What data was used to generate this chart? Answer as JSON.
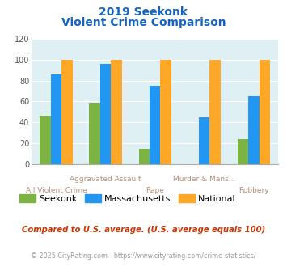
{
  "title_line1": "2019 Seekonk",
  "title_line2": "Violent Crime Comparison",
  "categories": [
    "All Violent Crime",
    "Aggravated Assault",
    "Rape",
    "Murder & Mans...",
    "Robbery"
  ],
  "seekonk": [
    46,
    59,
    15,
    0,
    24
  ],
  "massachusetts": [
    86,
    96,
    75,
    45,
    65
  ],
  "national": [
    100,
    100,
    100,
    100,
    100
  ],
  "seekonk_color": "#7CB342",
  "massachusetts_color": "#2196F3",
  "national_color": "#FFA726",
  "ylim": [
    0,
    120
  ],
  "yticks": [
    0,
    20,
    40,
    60,
    80,
    100,
    120
  ],
  "background_color": "#DFF0F5",
  "title_color": "#1565C0",
  "xlabel_top_color": "#B0907A",
  "xlabel_bot_color": "#B0907A",
  "note_text": "Compared to U.S. average. (U.S. average equals 100)",
  "footer_text": "© 2025 CityRating.com - https://www.cityrating.com/crime-statistics/",
  "note_color": "#CC3300",
  "footer_color": "#999999",
  "legend_labels": [
    "Seekonk",
    "Massachusetts",
    "National"
  ],
  "bar_width": 0.22
}
